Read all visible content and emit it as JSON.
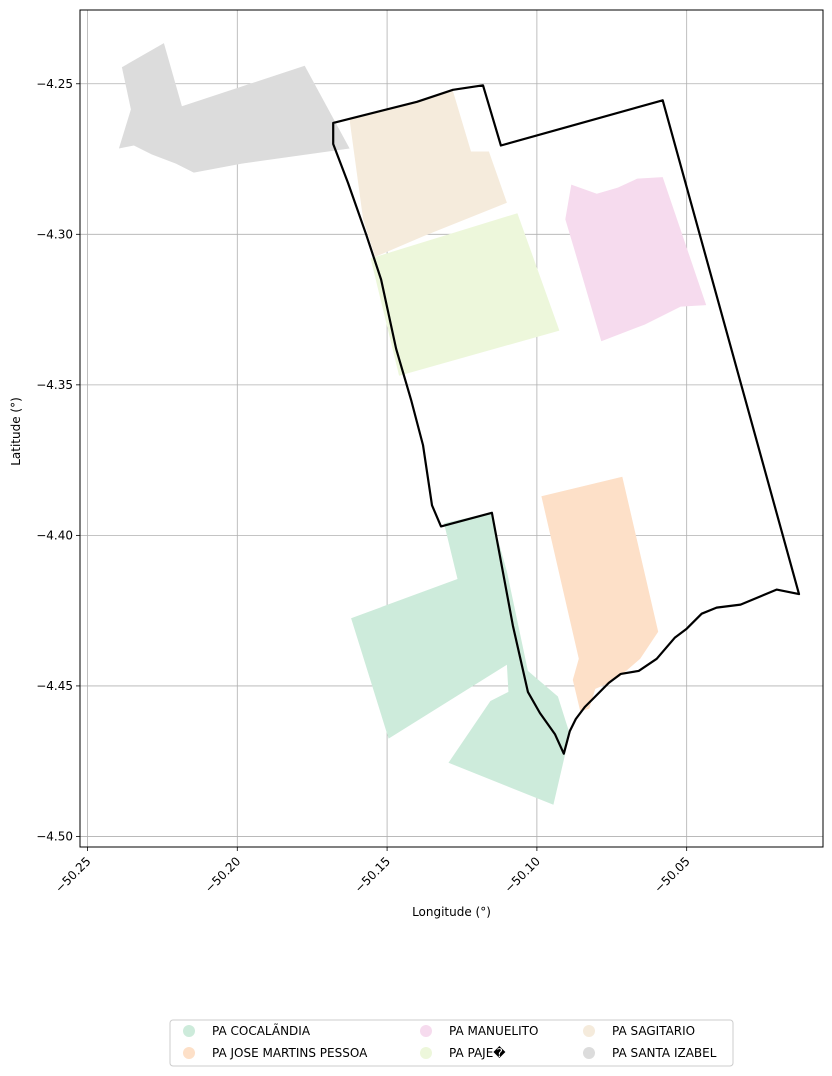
{
  "chart_data": {
    "type": "map",
    "xlabel": "Longitude (°)",
    "ylabel": "Latitude (°)",
    "xlim": [
      -50.2525,
      -50.0045
    ],
    "ylim": [
      -4.5035,
      -4.2255
    ],
    "grid": true,
    "legend_placement": "bottom-center",
    "x_ticks": [
      {
        "value": -50.25,
        "label": "−50.25"
      },
      {
        "value": -50.2,
        "label": "−50.20"
      },
      {
        "value": -50.15,
        "label": "−50.15"
      },
      {
        "value": -50.1,
        "label": "−50.10"
      },
      {
        "value": -50.05,
        "label": "−50.05"
      }
    ],
    "y_ticks": [
      {
        "value": -4.25,
        "label": "−4.25"
      },
      {
        "value": -4.3,
        "label": "−4.30"
      },
      {
        "value": -4.35,
        "label": "−4.35"
      },
      {
        "value": -4.4,
        "label": "−4.40"
      },
      {
        "value": -4.45,
        "label": "−4.45"
      },
      {
        "value": -4.5,
        "label": "−4.50"
      }
    ],
    "boundary": {
      "color": "#000000",
      "coords": [
        [
          -50.168,
          -4.263
        ],
        [
          -50.14,
          -4.256
        ],
        [
          -50.128,
          -4.252
        ],
        [
          -50.118,
          -4.2505
        ],
        [
          -50.112,
          -4.2705
        ],
        [
          -50.058,
          -4.2555
        ],
        [
          -50.0125,
          -4.4195
        ],
        [
          -50.02,
          -4.418
        ],
        [
          -50.032,
          -4.423
        ],
        [
          -50.04,
          -4.424
        ],
        [
          -50.045,
          -4.426
        ],
        [
          -50.05,
          -4.431
        ],
        [
          -50.054,
          -4.434
        ],
        [
          -50.06,
          -4.441
        ],
        [
          -50.066,
          -4.445
        ],
        [
          -50.072,
          -4.446
        ],
        [
          -50.076,
          -4.449
        ],
        [
          -50.081,
          -4.454
        ],
        [
          -50.084,
          -4.457
        ],
        [
          -50.087,
          -4.461
        ],
        [
          -50.089,
          -4.465
        ],
        [
          -50.091,
          -4.4725
        ],
        [
          -50.094,
          -4.466
        ],
        [
          -50.099,
          -4.459
        ],
        [
          -50.103,
          -4.452
        ],
        [
          -50.108,
          -4.43
        ],
        [
          -50.115,
          -4.3925
        ],
        [
          -50.132,
          -4.397
        ],
        [
          -50.135,
          -4.39
        ],
        [
          -50.138,
          -4.37
        ],
        [
          -50.142,
          -4.355
        ],
        [
          -50.147,
          -4.338
        ],
        [
          -50.152,
          -4.315
        ],
        [
          -50.157,
          -4.3
        ],
        [
          -50.163,
          -4.283
        ],
        [
          -50.168,
          -4.27
        ]
      ]
    },
    "series": [
      {
        "name": "PA COCALÃNDIA",
        "color": "#cdebdb",
        "polygons": [
          [
            [
              -50.131,
              -4.396
            ],
            [
              -50.1155,
              -4.3925
            ],
            [
              -50.11,
              -4.412
            ],
            [
              -50.103,
              -4.445
            ],
            [
              -50.093,
              -4.4535
            ],
            [
              -50.089,
              -4.466
            ],
            [
              -50.0945,
              -4.4895
            ],
            [
              -50.1295,
              -4.4755
            ],
            [
              -50.1155,
              -4.455
            ],
            [
              -50.1095,
              -4.452
            ],
            [
              -50.11,
              -4.443
            ],
            [
              -50.1495,
              -4.4675
            ],
            [
              -50.162,
              -4.4275
            ],
            [
              -50.1265,
              -4.4145
            ]
          ]
        ]
      },
      {
        "name": "PA JOSE MARTINS PESSOA",
        "color": "#fde0c8",
        "polygons": [
          [
            [
              -50.0985,
              -4.387
            ],
            [
              -50.0715,
              -4.3805
            ],
            [
              -50.0595,
              -4.432
            ],
            [
              -50.0655,
              -4.441
            ],
            [
              -50.0725,
              -4.447
            ],
            [
              -50.077,
              -4.4495
            ],
            [
              -50.0805,
              -4.451
            ],
            [
              -50.0825,
              -4.4575
            ],
            [
              -50.0855,
              -4.4585
            ],
            [
              -50.088,
              -4.448
            ],
            [
              -50.086,
              -4.441
            ]
          ]
        ]
      },
      {
        "name": "PA MANUELITO",
        "color": "#f6dbee",
        "polygons": [
          [
            [
              -50.0885,
              -4.2835
            ],
            [
              -50.08,
              -4.2865
            ],
            [
              -50.073,
              -4.2845
            ],
            [
              -50.0665,
              -4.2815
            ],
            [
              -50.058,
              -4.281
            ],
            [
              -50.0435,
              -4.3235
            ],
            [
              -50.052,
              -4.324
            ],
            [
              -50.064,
              -4.33
            ],
            [
              -50.0785,
              -4.3355
            ],
            [
              -50.0875,
              -4.305
            ],
            [
              -50.0905,
              -4.295
            ]
          ]
        ]
      },
      {
        "name": "PA PAJE�",
        "color": "#edf7db",
        "polygons": [
          [
            [
              -50.1555,
              -4.308
            ],
            [
              -50.1065,
              -4.293
            ],
            [
              -50.0925,
              -4.332
            ],
            [
              -50.146,
              -4.347
            ]
          ]
        ]
      },
      {
        "name": "PA SAGITARIO",
        "color": "#f5ebdc",
        "polygons": [
          [
            [
              -50.1625,
              -4.262
            ],
            [
              -50.128,
              -4.2525
            ],
            [
              -50.122,
              -4.2725
            ],
            [
              -50.116,
              -4.2725
            ],
            [
              -50.11,
              -4.2895
            ],
            [
              -50.1375,
              -4.3005
            ],
            [
              -50.154,
              -4.3075
            ],
            [
              -50.158,
              -4.295
            ]
          ]
        ]
      },
      {
        "name": "PA SANTA IZABEL",
        "color": "#dcdcdc",
        "polygons": [
          [
            [
              -50.2385,
              -4.2445
            ],
            [
              -50.2245,
              -4.2365
            ],
            [
              -50.2185,
              -4.2575
            ],
            [
              -50.1775,
              -4.244
            ],
            [
              -50.1625,
              -4.2715
            ],
            [
              -50.1985,
              -4.2765
            ],
            [
              -50.2145,
              -4.2795
            ],
            [
              -50.2205,
              -4.2765
            ],
            [
              -50.2285,
              -4.2735
            ],
            [
              -50.2345,
              -4.2705
            ],
            [
              -50.2395,
              -4.2715
            ],
            [
              -50.2355,
              -4.2585
            ]
          ]
        ]
      }
    ]
  }
}
